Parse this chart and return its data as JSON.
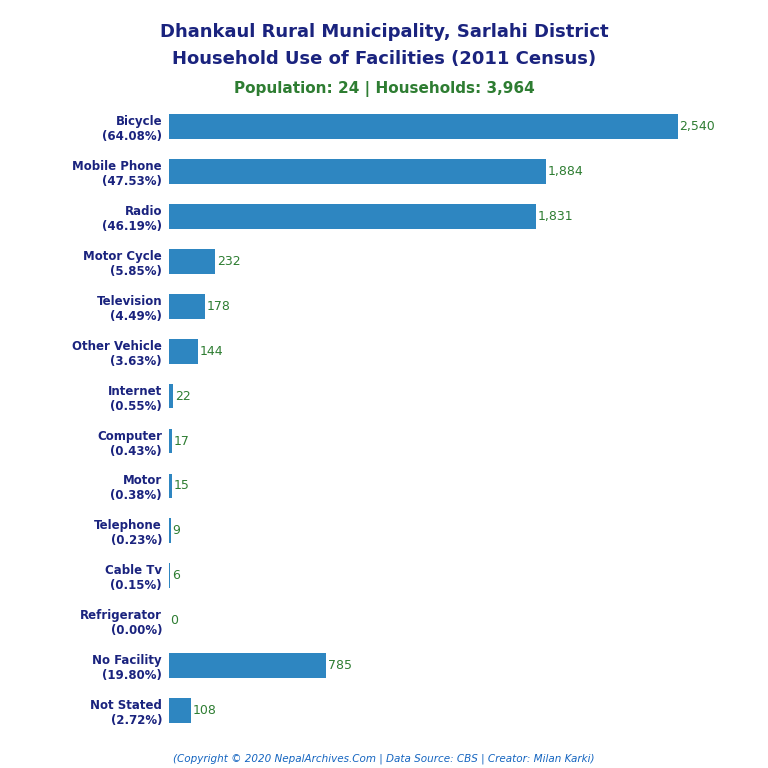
{
  "title_line1": "Dhankaul Rural Municipality, Sarlahi District",
  "title_line2": "Household Use of Facilities (2011 Census)",
  "subtitle": "Population: 24 | Households: 3,964",
  "footer": "(Copyright © 2020 NepalArchives.Com | Data Source: CBS | Creator: Milan Karki)",
  "categories": [
    "Bicycle\n(64.08%)",
    "Mobile Phone\n(47.53%)",
    "Radio\n(46.19%)",
    "Motor Cycle\n(5.85%)",
    "Television\n(4.49%)",
    "Other Vehicle\n(3.63%)",
    "Internet\n(0.55%)",
    "Computer\n(0.43%)",
    "Motor\n(0.38%)",
    "Telephone\n(0.23%)",
    "Cable Tv\n(0.15%)",
    "Refrigerator\n(0.00%)",
    "No Facility\n(19.80%)",
    "Not Stated\n(2.72%)"
  ],
  "values": [
    2540,
    1884,
    1831,
    232,
    178,
    144,
    22,
    17,
    15,
    9,
    6,
    0,
    785,
    108
  ],
  "value_labels": [
    "2,540",
    "1,884",
    "1,831",
    "232",
    "178",
    "144",
    "22",
    "17",
    "15",
    "9",
    "6",
    "0",
    "785",
    "108"
  ],
  "bar_color": "#2e86c1",
  "title_color": "#1a237e",
  "subtitle_color": "#2e7d32",
  "value_color": "#2e7d32",
  "footer_color": "#1565c0",
  "bg_color": "#ffffff",
  "xlim": [
    0,
    2800
  ]
}
